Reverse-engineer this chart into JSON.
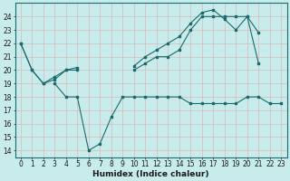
{
  "title": "",
  "xlabel": "Humidex (Indice chaleur)",
  "bg_color": "#c8ecec",
  "grid_color": "#a8d4d4",
  "line_color": "#1a6b6b",
  "x_values": [
    0,
    1,
    2,
    3,
    4,
    5,
    6,
    7,
    8,
    9,
    10,
    11,
    12,
    13,
    14,
    15,
    16,
    17,
    18,
    19,
    20,
    21,
    22,
    23
  ],
  "series1": [
    22,
    20,
    19,
    19.5,
    20,
    20,
    null,
    null,
    null,
    null,
    20,
    20.5,
    21,
    21,
    21.5,
    23,
    24,
    24,
    24,
    24,
    24,
    20.5,
    null,
    null
  ],
  "series2": [
    22,
    20,
    19,
    19.3,
    20,
    20.2,
    null,
    null,
    null,
    null,
    20.3,
    21,
    21.5,
    22,
    22.5,
    23.5,
    24.3,
    24.5,
    23.8,
    23,
    24,
    22.8,
    null,
    null
  ],
  "series3": [
    null,
    null,
    null,
    19,
    18,
    18,
    14,
    14.5,
    16.5,
    18,
    18,
    18,
    18,
    18,
    18,
    17.5,
    17.5,
    17.5,
    17.5,
    17.5,
    18,
    18,
    17.5,
    17.5
  ],
  "ylim_min": 13.5,
  "ylim_max": 25.0,
  "yticks": [
    14,
    15,
    16,
    17,
    18,
    19,
    20,
    21,
    22,
    23,
    24
  ],
  "xticks": [
    0,
    1,
    2,
    3,
    4,
    5,
    6,
    7,
    8,
    9,
    10,
    11,
    12,
    13,
    14,
    15,
    16,
    17,
    18,
    19,
    20,
    21,
    22,
    23
  ],
  "tick_fontsize": 5.5,
  "xlabel_fontsize": 6.5
}
